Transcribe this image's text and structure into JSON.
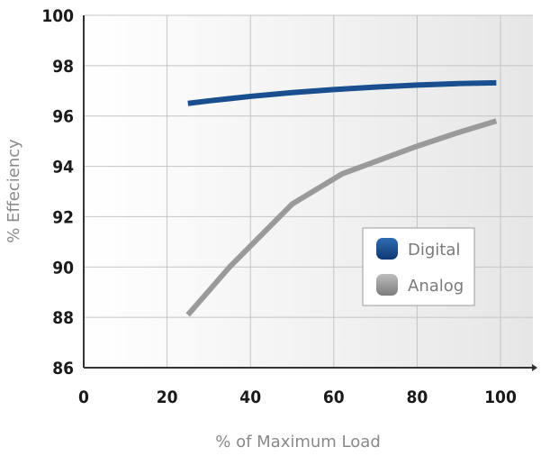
{
  "chart_data": {
    "type": "line",
    "title": "",
    "xlabel": "% of Maximum Load",
    "ylabel": "% Effeciency",
    "xlim": [
      0,
      110
    ],
    "ylim": [
      86,
      100
    ],
    "x_ticks": [
      "0",
      "20",
      "40",
      "60",
      "80",
      "100"
    ],
    "y_ticks": [
      "86",
      "88",
      "90",
      "92",
      "94",
      "96",
      "98",
      "100"
    ],
    "grid": true,
    "legend_position": "bottom-right",
    "series": [
      {
        "name": "Digital",
        "color": "#1a4f8f",
        "x": [
          25,
          30,
          40,
          50,
          60,
          70,
          80,
          90,
          99
        ],
        "y": [
          96.5,
          96.6,
          96.78,
          96.93,
          97.05,
          97.15,
          97.23,
          97.29,
          97.32
        ]
      },
      {
        "name": "Analog",
        "color": "#9a9a9a",
        "x": [
          25,
          35,
          50,
          62,
          80,
          90,
          99
        ],
        "y": [
          88.1,
          90.0,
          92.5,
          93.7,
          94.8,
          95.35,
          95.8
        ]
      }
    ]
  }
}
